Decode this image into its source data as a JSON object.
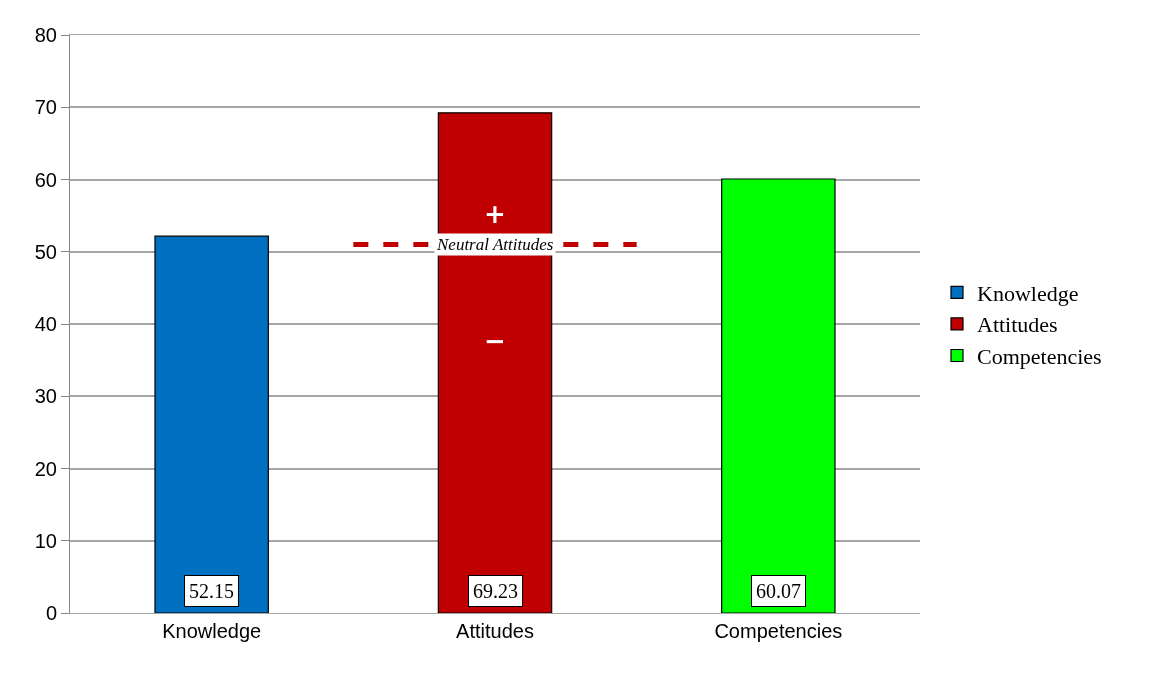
{
  "chart_data": {
    "type": "bar",
    "categories": [
      "Knowledge",
      "Attitudes",
      "Competencies"
    ],
    "series": [
      {
        "name": "Knowledge",
        "color": "#0070c0",
        "values": [
          52.15,
          null,
          null
        ]
      },
      {
        "name": "Attitudes",
        "color": "#c00000",
        "values": [
          null,
          69.23,
          null
        ]
      },
      {
        "name": "Competencies",
        "color": "#00ff00",
        "values": [
          null,
          null,
          60.07
        ]
      }
    ],
    "ylim": [
      0,
      80
    ],
    "yticks": [
      0,
      10,
      20,
      30,
      40,
      50,
      60,
      70,
      80
    ],
    "grid": "y",
    "legend": "right",
    "data_labels": true,
    "ref_lines": [
      {
        "axis": "y",
        "value": 51,
        "label": "Neutral Attitudes",
        "color": "#c00000",
        "line_style": "dashed"
      }
    ],
    "annotations": [
      "+",
      "−"
    ]
  }
}
